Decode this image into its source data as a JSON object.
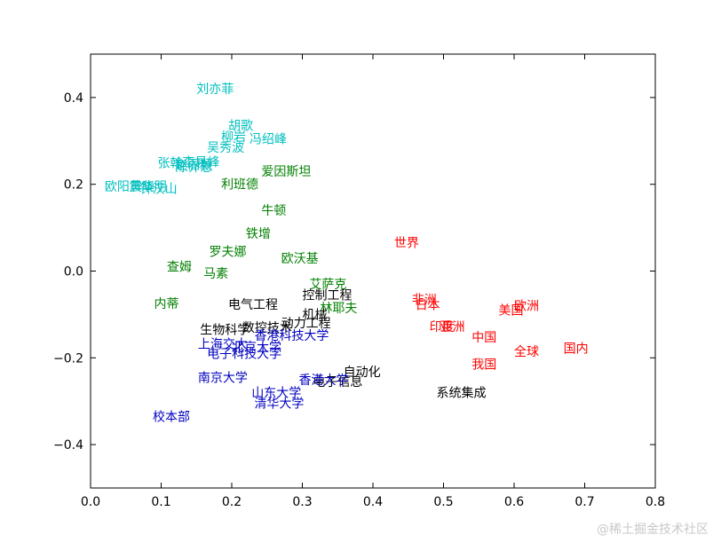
{
  "chart_data": {
    "type": "scatter",
    "title": "",
    "xlabel": "",
    "ylabel": "",
    "xlim": [
      0.0,
      0.8
    ],
    "ylim": [
      -0.5,
      0.5
    ],
    "xticks": [
      "0.0",
      "0.1",
      "0.2",
      "0.3",
      "0.4",
      "0.5",
      "0.6",
      "0.7",
      "0.8"
    ],
    "yticks": [
      "0.4",
      "0.2",
      "0.0",
      "−0.2",
      "−0.4"
    ],
    "grid": false,
    "series": [
      {
        "color": "#00BFBF",
        "points": [
          {
            "label": "刘亦菲",
            "x": 0.15,
            "y": 0.42
          },
          {
            "label": "胡歌",
            "x": 0.195,
            "y": 0.335
          },
          {
            "label": "柳岩",
            "x": 0.185,
            "y": 0.31
          },
          {
            "label": "冯绍峰",
            "x": 0.225,
            "y": 0.305
          },
          {
            "label": "吴秀波",
            "x": 0.165,
            "y": 0.285
          },
          {
            "label": "张翰",
            "x": 0.095,
            "y": 0.25
          },
          {
            "label": "李易峰",
            "x": 0.13,
            "y": 0.252
          },
          {
            "label": "赵丽颖",
            "x": 0.12,
            "y": 0.245
          },
          {
            "label": "陈乔恩",
            "x": 0.12,
            "y": 0.24
          },
          {
            "label": "欧阳震华",
            "x": 0.02,
            "y": 0.195
          },
          {
            "label": "黄晓明",
            "x": 0.055,
            "y": 0.195
          },
          {
            "label": "钟汉山",
            "x": 0.07,
            "y": 0.19
          }
        ]
      },
      {
        "color": "#007F00",
        "points": [
          {
            "label": "爱因斯坦",
            "x": 0.242,
            "y": 0.23
          },
          {
            "label": "利班德",
            "x": 0.185,
            "y": 0.2
          },
          {
            "label": "牛顿",
            "x": 0.242,
            "y": 0.14
          },
          {
            "label": "铁增",
            "x": 0.22,
            "y": 0.087
          },
          {
            "label": "罗夫娜",
            "x": 0.168,
            "y": 0.045
          },
          {
            "label": "欧沃基",
            "x": 0.27,
            "y": 0.03
          },
          {
            "label": "查姆",
            "x": 0.108,
            "y": 0.01
          },
          {
            "label": "马素",
            "x": 0.16,
            "y": -0.005
          },
          {
            "label": "艾萨克",
            "x": 0.31,
            "y": -0.03
          },
          {
            "label": "内蒂",
            "x": 0.09,
            "y": -0.075
          },
          {
            "label": "林耶夫",
            "x": 0.325,
            "y": -0.085
          }
        ]
      },
      {
        "color": "#000000",
        "points": [
          {
            "label": "电气工程",
            "x": 0.195,
            "y": -0.077
          },
          {
            "label": "控制工程",
            "x": 0.3,
            "y": -0.055
          },
          {
            "label": "机械",
            "x": 0.3,
            "y": -0.1
          },
          {
            "label": "数控技术",
            "x": 0.215,
            "y": -0.13
          },
          {
            "label": "动力工程",
            "x": 0.27,
            "y": -0.12
          },
          {
            "label": "生物科学",
            "x": 0.155,
            "y": -0.135
          },
          {
            "label": "自动化",
            "x": 0.358,
            "y": -0.232
          },
          {
            "label": "电子信息",
            "x": 0.315,
            "y": -0.255
          },
          {
            "label": "系统集成",
            "x": 0.49,
            "y": -0.28
          }
        ]
      },
      {
        "color": "#0000BF",
        "points": [
          {
            "label": "香港科技大学",
            "x": 0.232,
            "y": -0.148
          },
          {
            "label": "上海交大",
            "x": 0.152,
            "y": -0.168
          },
          {
            "label": "北京大学",
            "x": 0.2,
            "y": -0.175
          },
          {
            "label": "电子科技大学",
            "x": 0.165,
            "y": -0.19
          },
          {
            "label": "南京大学",
            "x": 0.152,
            "y": -0.245
          },
          {
            "label": "香港大学",
            "x": 0.295,
            "y": -0.25
          },
          {
            "label": "山东大学",
            "x": 0.228,
            "y": -0.28
          },
          {
            "label": "清华大学",
            "x": 0.232,
            "y": -0.305
          },
          {
            "label": "校本部",
            "x": 0.088,
            "y": -0.335
          }
        ]
      },
      {
        "color": "#FF0000",
        "points": [
          {
            "label": "世界",
            "x": 0.43,
            "y": 0.065
          },
          {
            "label": "非洲",
            "x": 0.455,
            "y": -0.065
          },
          {
            "label": "日本",
            "x": 0.46,
            "y": -0.078
          },
          {
            "label": "欧洲",
            "x": 0.6,
            "y": -0.08
          },
          {
            "label": "美国",
            "x": 0.578,
            "y": -0.09
          },
          {
            "label": "印度",
            "x": 0.48,
            "y": -0.128
          },
          {
            "label": "亚洲",
            "x": 0.495,
            "y": -0.128
          },
          {
            "label": "中国",
            "x": 0.54,
            "y": -0.152
          },
          {
            "label": "国内",
            "x": 0.67,
            "y": -0.178
          },
          {
            "label": "全球",
            "x": 0.6,
            "y": -0.185
          },
          {
            "label": "我国",
            "x": 0.54,
            "y": -0.215
          }
        ]
      }
    ]
  },
  "watermark": "@稀土掘金技术社区"
}
